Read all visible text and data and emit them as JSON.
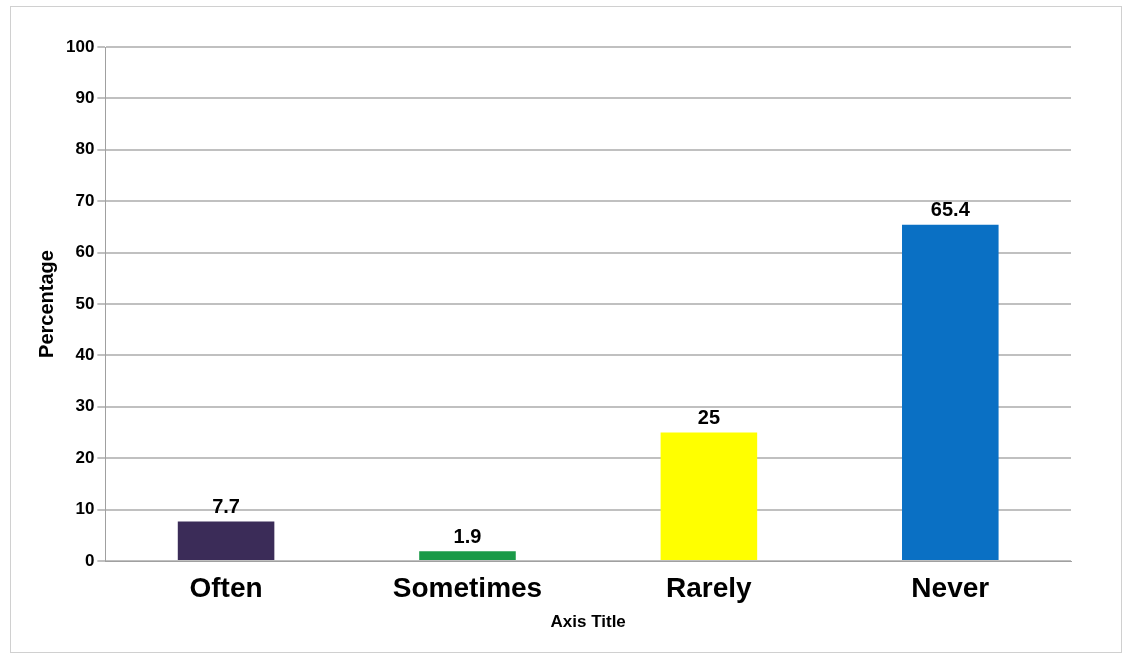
{
  "chart_data": {
    "type": "bar",
    "xlabel": "Axis Title",
    "ylabel": "Percentage",
    "categories": [
      "Often",
      "Sometimes",
      "Rarely",
      "Never"
    ],
    "values": [
      7.7,
      1.9,
      25,
      65.4
    ],
    "colors": [
      "#3b2c58",
      "#1a9a48",
      "#ffff00",
      "#0a70c4"
    ],
    "ylim": [
      0,
      100
    ],
    "yticks": [
      0,
      10,
      20,
      30,
      40,
      50,
      60,
      70,
      80,
      90,
      100
    ],
    "grid": "y",
    "legend": false,
    "data_labels": true
  }
}
